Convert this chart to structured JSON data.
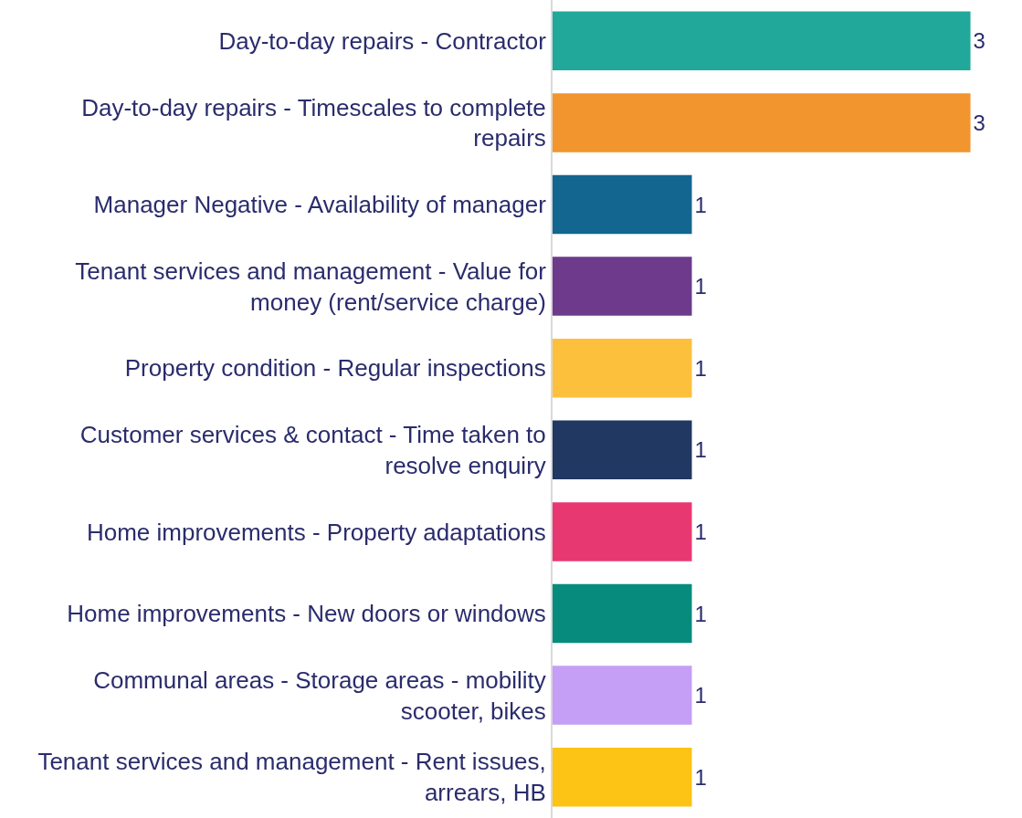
{
  "chart_data": {
    "type": "bar",
    "orientation": "horizontal",
    "data_labels": true,
    "tick_labels": "y",
    "grid": false,
    "legend": false,
    "xlim": [
      0,
      3.37
    ],
    "categories": [
      "Day-to-day repairs - Contractor",
      "Day-to-day repairs - Timescales to complete repairs",
      "Manager Negative - Availability of manager",
      "Tenant services and management - Value for money (rent/service charge)",
      "Property condition - Regular inspections",
      "Customer services & contact - Time taken to resolve enquiry",
      "Home improvements - Property adaptations",
      "Home improvements - New doors or windows",
      "Communal areas - Storage areas - mobility scooter, bikes",
      "Tenant services and management - Rent issues, arrears, HB"
    ],
    "values": [
      3,
      3,
      1,
      1,
      1,
      1,
      1,
      1,
      1,
      1
    ],
    "colors": [
      "#21a89a",
      "#f2952f",
      "#13668f",
      "#6e3a8c",
      "#fdc03d",
      "#213862",
      "#e83872",
      "#068b7d",
      "#c59ef5",
      "#fdc315"
    ]
  }
}
